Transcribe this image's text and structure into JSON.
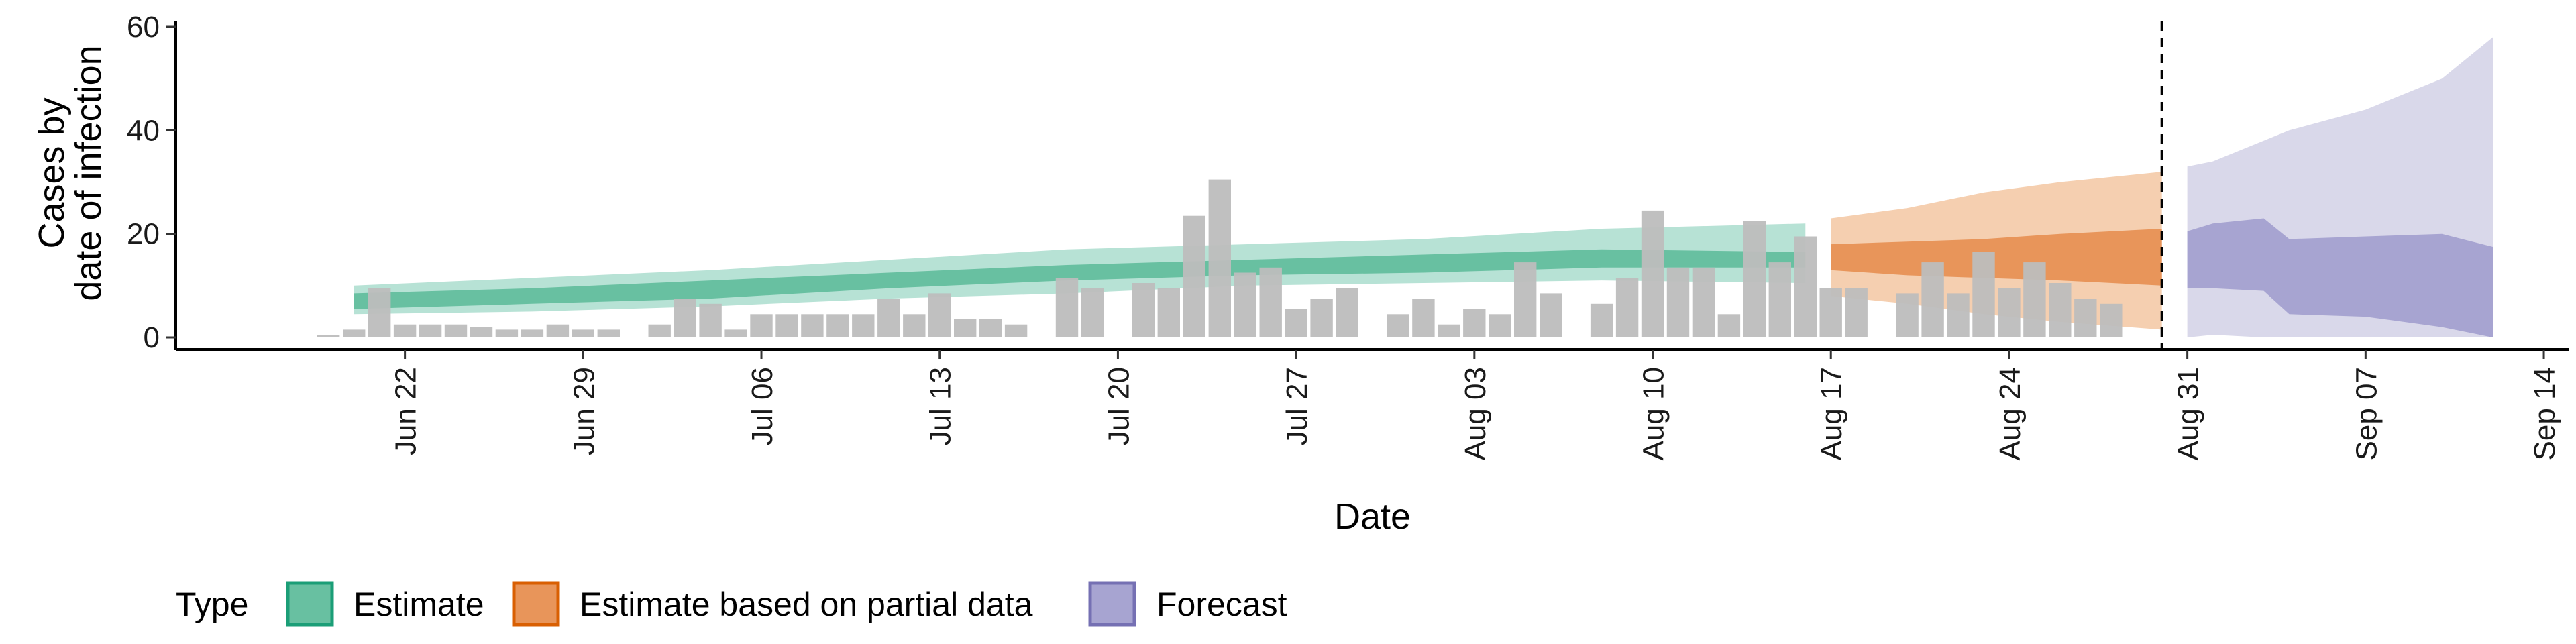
{
  "chart_data": {
    "type": "area",
    "xlabel": "Date",
    "ylabel_lines": [
      "Cases by",
      "date of infection"
    ],
    "ylim": [
      0,
      60
    ],
    "yticks": [
      0,
      20,
      40,
      60
    ],
    "xlim": [
      "2020-06-13",
      "2020-09-15"
    ],
    "xticks": [
      {
        "date": "2020-06-22",
        "label": "Jun 22"
      },
      {
        "date": "2020-06-29",
        "label": "Jun 29"
      },
      {
        "date": "2020-07-06",
        "label": "Jul 06"
      },
      {
        "date": "2020-07-13",
        "label": "Jul 13"
      },
      {
        "date": "2020-07-20",
        "label": "Jul 20"
      },
      {
        "date": "2020-07-27",
        "label": "Jul 27"
      },
      {
        "date": "2020-08-03",
        "label": "Aug 03"
      },
      {
        "date": "2020-08-10",
        "label": "Aug 10"
      },
      {
        "date": "2020-08-17",
        "label": "Aug 17"
      },
      {
        "date": "2020-08-24",
        "label": "Aug 24"
      },
      {
        "date": "2020-08-31",
        "label": "Aug 31"
      },
      {
        "date": "2020-09-07",
        "label": "Sep 07"
      },
      {
        "date": "2020-09-14",
        "label": "Sep 14"
      }
    ],
    "cutoff_date": "2020-08-30",
    "bars": {
      "color": "#bdbdbd",
      "start_date": "2020-06-19",
      "values": [
        0.5,
        1.5,
        9.5,
        2.5,
        2.5,
        2.5,
        2,
        1.5,
        1.5,
        2.5,
        1.5,
        1.5,
        0,
        2.5,
        7.5,
        6.5,
        1.5,
        4.5,
        4.5,
        4.5,
        4.5,
        4.5,
        7.5,
        4.5,
        8.5,
        3.5,
        3.5,
        2.5,
        0,
        11.5,
        9.5,
        0,
        10.5,
        9.5,
        23.5,
        30.5,
        12.5,
        13.5,
        5.5,
        7.5,
        9.5,
        0,
        4.5,
        7.5,
        2.5,
        5.5,
        4.5,
        14.5,
        8.5,
        0,
        6.5,
        11.5,
        24.5,
        13.5,
        13.5,
        4.5,
        22.5,
        14.5,
        19.5,
        9.5,
        9.5,
        0,
        8.5,
        14.5,
        8.5,
        16.5,
        9.5,
        14.5,
        10.5,
        7.5,
        6.5
      ]
    },
    "series": [
      {
        "name": "Estimate",
        "color": "#1b9e77",
        "fill_outer": "#b7e2d5",
        "fill_inner": "#68c0a1",
        "x": [
          "2020-06-20",
          "2020-06-27",
          "2020-07-04",
          "2020-07-11",
          "2020-07-18",
          "2020-07-25",
          "2020-08-01",
          "2020-08-08",
          "2020-08-16"
        ],
        "outer_lower": [
          4.5,
          5,
          6,
          7.5,
          8.5,
          10,
          10.5,
          11,
          10.5
        ],
        "outer_upper": [
          10,
          11.5,
          13,
          15,
          17,
          18,
          19,
          21,
          22
        ],
        "inner_lower": [
          5.5,
          6.5,
          7.5,
          9.5,
          11,
          12,
          12.5,
          13.5,
          13.5
        ],
        "inner_upper": [
          8.5,
          9.5,
          11,
          12.5,
          14,
          15,
          16,
          17,
          16.5
        ]
      },
      {
        "name": "Estimate based on partial data",
        "color": "#d95f02",
        "fill_outer": "#f5cfb0",
        "fill_inner": "#e8955a",
        "x": [
          "2020-08-17",
          "2020-08-20",
          "2020-08-23",
          "2020-08-26",
          "2020-08-30"
        ],
        "outer_lower": [
          8,
          6.5,
          4.5,
          3,
          1.5
        ],
        "outer_upper": [
          23,
          25,
          28,
          30,
          32
        ],
        "inner_lower": [
          13,
          12,
          11.5,
          11,
          10
        ],
        "inner_upper": [
          18,
          18.5,
          19,
          20,
          21
        ]
      },
      {
        "name": "Forecast",
        "color": "#7570b3",
        "fill_outer": "#d9d8ea",
        "fill_inner": "#a7a4d1",
        "x": [
          "2020-08-31",
          "2020-09-01",
          "2020-09-03",
          "2020-09-04",
          "2020-09-07",
          "2020-09-10",
          "2020-09-12"
        ],
        "outer_lower": [
          0,
          0.5,
          0,
          0,
          0,
          0,
          0
        ],
        "outer_upper": [
          33,
          34,
          38,
          40,
          44,
          50,
          58
        ],
        "inner_lower": [
          9.5,
          9.5,
          9,
          4.5,
          4,
          2,
          0
        ],
        "inner_upper": [
          20.5,
          22,
          23,
          19,
          19.5,
          20,
          17.5
        ]
      }
    ],
    "legend": {
      "title": "Type",
      "position": "bottom",
      "entries": [
        "Estimate",
        "Estimate based on partial data",
        "Forecast"
      ]
    }
  }
}
